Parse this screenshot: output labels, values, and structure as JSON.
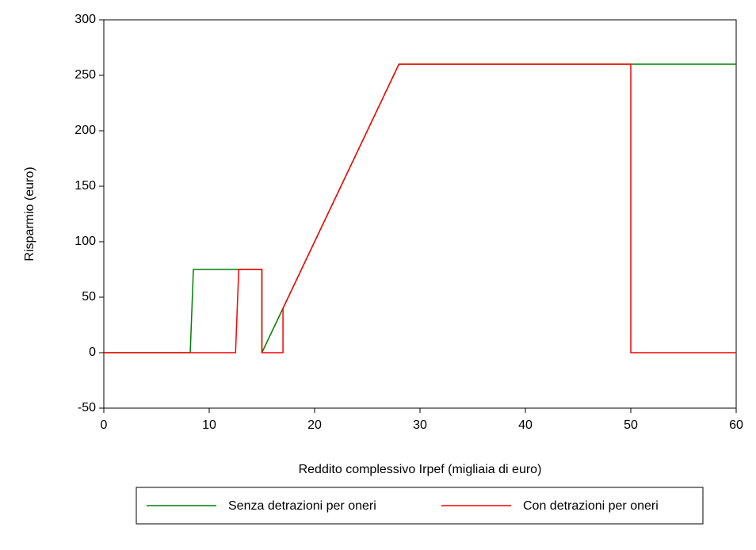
{
  "chart_data": {
    "type": "line",
    "x_label": "Reddito complessivo Irpef (migliaia di euro)",
    "y_label": "Risparmio (euro)",
    "xlim": [
      0,
      60
    ],
    "xticks": [
      0,
      10,
      20,
      30,
      40,
      50,
      60
    ],
    "ylim": [
      -50,
      300
    ],
    "yticks": [
      -50,
      0,
      50,
      100,
      150,
      200,
      250,
      300
    ],
    "grid": false,
    "legend": "bottom",
    "series": [
      {
        "name": "Senza detrazioni per oneri",
        "color": "#008000",
        "x": [
          0,
          8.2,
          8.5,
          15,
          15,
          17,
          28,
          60
        ],
        "values": [
          0,
          0,
          75,
          75,
          0,
          40,
          260,
          260
        ]
      },
      {
        "name": "Con detrazioni per oneri",
        "color": "#ff0000",
        "x": [
          0,
          12.5,
          12.8,
          15,
          15,
          17,
          17,
          28,
          50,
          50,
          60
        ],
        "values": [
          0,
          0,
          75,
          75,
          0,
          0,
          40,
          260,
          260,
          0,
          0
        ]
      }
    ]
  }
}
